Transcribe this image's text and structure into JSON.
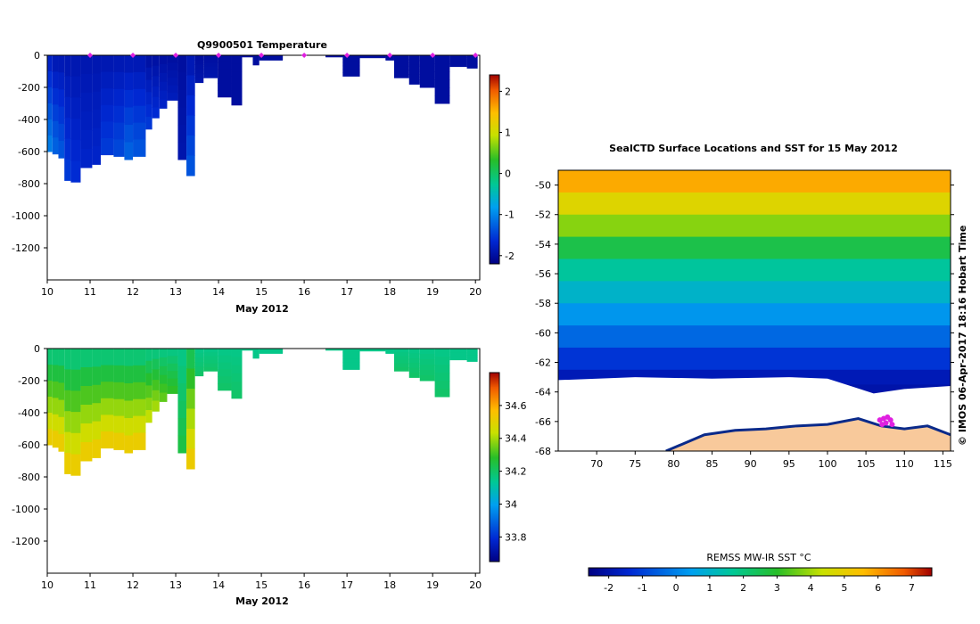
{
  "chart_data": [
    {
      "id": "temperature-section",
      "type": "heatmap",
      "title": "Q9900501  Temperature",
      "xlabel": "May 2012",
      "ylabel": "",
      "xlim": [
        10,
        20.1
      ],
      "ylim": [
        -1400,
        0
      ],
      "xticks": [
        "10",
        "11",
        "12",
        "13",
        "14",
        "15",
        "16",
        "17",
        "18",
        "19",
        "20"
      ],
      "yticks": [
        "0",
        "-200",
        "-400",
        "-600",
        "-800",
        "-1000",
        "-1200"
      ],
      "colorbar": {
        "min": -2.2,
        "max": 2.4,
        "ticks": [
          "2",
          "1",
          "0",
          "-1",
          "-2"
        ]
      },
      "profile_markers_x": [
        11,
        12,
        13,
        14,
        15,
        16,
        17,
        18,
        19,
        20
      ],
      "profiles": [
        {
          "x0": 10.0,
          "x1": 10.12,
          "depth": 600,
          "surface": -1.8,
          "bottom": -1.0
        },
        {
          "x0": 10.12,
          "x1": 10.26,
          "depth": 615,
          "surface": -1.9,
          "bottom": -1.2
        },
        {
          "x0": 10.26,
          "x1": 10.4,
          "depth": 640,
          "surface": -1.9,
          "bottom": -1.3
        },
        {
          "x0": 10.4,
          "x1": 10.55,
          "depth": 780,
          "surface": -1.9,
          "bottom": -1.5
        },
        {
          "x0": 10.55,
          "x1": 10.78,
          "depth": 790,
          "surface": -1.9,
          "bottom": -1.6
        },
        {
          "x0": 10.78,
          "x1": 11.05,
          "depth": 700,
          "surface": -1.9,
          "bottom": -1.7
        },
        {
          "x0": 11.05,
          "x1": 11.25,
          "depth": 680,
          "surface": -1.9,
          "bottom": -1.7
        },
        {
          "x0": 11.25,
          "x1": 11.55,
          "depth": 620,
          "surface": -1.9,
          "bottom": -1.5
        },
        {
          "x0": 11.55,
          "x1": 11.8,
          "depth": 630,
          "surface": -1.9,
          "bottom": -1.4
        },
        {
          "x0": 11.8,
          "x1": 12.0,
          "depth": 650,
          "surface": -1.9,
          "bottom": -1.2
        },
        {
          "x0": 12.0,
          "x1": 12.3,
          "depth": 630,
          "surface": -1.9,
          "bottom": -1.3
        },
        {
          "x0": 12.3,
          "x1": 12.45,
          "depth": 460,
          "surface": -2.0,
          "bottom": -1.5
        },
        {
          "x0": 12.45,
          "x1": 12.62,
          "depth": 390,
          "surface": -2.0,
          "bottom": -1.6
        },
        {
          "x0": 12.62,
          "x1": 12.8,
          "depth": 330,
          "surface": -2.0,
          "bottom": -1.7
        },
        {
          "x0": 12.8,
          "x1": 13.05,
          "depth": 280,
          "surface": -2.0,
          "bottom": -1.8
        },
        {
          "x0": 13.05,
          "x1": 13.25,
          "depth": 650,
          "surface": -2.0,
          "bottom": -1.9
        },
        {
          "x0": 13.25,
          "x1": 13.45,
          "depth": 750,
          "surface": -1.9,
          "bottom": -1.3
        },
        {
          "x0": 13.45,
          "x1": 13.65,
          "depth": 170,
          "surface": -2.0,
          "bottom": -1.9
        },
        {
          "x0": 13.65,
          "x1": 13.98,
          "depth": 140,
          "surface": -2.0,
          "bottom": -1.9
        },
        {
          "x0": 13.98,
          "x1": 14.3,
          "depth": 260,
          "surface": -2.0,
          "bottom": -2.0
        },
        {
          "x0": 14.3,
          "x1": 14.55,
          "depth": 310,
          "surface": -2.0,
          "bottom": -2.0
        },
        {
          "x0": 14.55,
          "x1": 14.8,
          "depth": 10,
          "surface": -2.0,
          "bottom": -2.0
        },
        {
          "x0": 14.8,
          "x1": 14.95,
          "depth": 60,
          "surface": -2.0,
          "bottom": -2.0
        },
        {
          "x0": 14.95,
          "x1": 15.5,
          "depth": 30,
          "surface": -2.0,
          "bottom": -2.0
        },
        {
          "x0": 16.5,
          "x1": 16.9,
          "depth": 10,
          "surface": -2.0,
          "bottom": -2.0
        },
        {
          "x0": 16.9,
          "x1": 17.3,
          "depth": 130,
          "surface": -2.0,
          "bottom": -2.0
        },
        {
          "x0": 17.3,
          "x1": 17.9,
          "depth": 15,
          "surface": -2.0,
          "bottom": -2.0
        },
        {
          "x0": 17.9,
          "x1": 18.1,
          "depth": 30,
          "surface": -2.0,
          "bottom": -2.0
        },
        {
          "x0": 18.1,
          "x1": 18.45,
          "depth": 140,
          "surface": -2.0,
          "bottom": -2.0
        },
        {
          "x0": 18.45,
          "x1": 18.7,
          "depth": 180,
          "surface": -2.0,
          "bottom": -2.0
        },
        {
          "x0": 18.7,
          "x1": 19.05,
          "depth": 200,
          "surface": -2.0,
          "bottom": -2.0
        },
        {
          "x0": 19.05,
          "x1": 19.4,
          "depth": 300,
          "surface": -2.0,
          "bottom": -2.0
        },
        {
          "x0": 19.4,
          "x1": 19.8,
          "depth": 70,
          "surface": -2.0,
          "bottom": -2.0
        },
        {
          "x0": 19.8,
          "x1": 20.05,
          "depth": 80,
          "surface": -2.0,
          "bottom": -2.0
        }
      ]
    },
    {
      "id": "salinity-section",
      "type": "heatmap",
      "title": "",
      "xlabel": "May 2012",
      "ylabel": "",
      "xlim": [
        10,
        20.1
      ],
      "ylim": [
        -1400,
        0
      ],
      "xticks": [
        "10",
        "11",
        "12",
        "13",
        "14",
        "15",
        "16",
        "17",
        "18",
        "19",
        "20"
      ],
      "yticks": [
        "0",
        "-200",
        "-400",
        "-600",
        "-800",
        "-1000",
        "-1200"
      ],
      "colorbar": {
        "min": 33.65,
        "max": 34.8,
        "ticks": [
          "34.6",
          "34.4",
          "34.2",
          "34",
          "33.8"
        ]
      },
      "profiles": [
        {
          "x0": 10.0,
          "x1": 10.12,
          "depth": 600,
          "surface": 34.15,
          "bottom": 34.55
        },
        {
          "x0": 10.12,
          "x1": 10.26,
          "depth": 615,
          "surface": 34.15,
          "bottom": 34.55
        },
        {
          "x0": 10.26,
          "x1": 10.4,
          "depth": 640,
          "surface": 34.15,
          "bottom": 34.55
        },
        {
          "x0": 10.4,
          "x1": 10.55,
          "depth": 780,
          "surface": 34.15,
          "bottom": 34.55
        },
        {
          "x0": 10.55,
          "x1": 10.78,
          "depth": 790,
          "surface": 34.15,
          "bottom": 34.55
        },
        {
          "x0": 10.78,
          "x1": 11.05,
          "depth": 700,
          "surface": 34.15,
          "bottom": 34.55
        },
        {
          "x0": 11.05,
          "x1": 11.25,
          "depth": 680,
          "surface": 34.15,
          "bottom": 34.55
        },
        {
          "x0": 11.25,
          "x1": 11.55,
          "depth": 620,
          "surface": 34.15,
          "bottom": 34.55
        },
        {
          "x0": 11.55,
          "x1": 11.8,
          "depth": 630,
          "surface": 34.15,
          "bottom": 34.55
        },
        {
          "x0": 11.8,
          "x1": 12.0,
          "depth": 650,
          "surface": 34.15,
          "bottom": 34.55
        },
        {
          "x0": 12.0,
          "x1": 12.3,
          "depth": 630,
          "surface": 34.15,
          "bottom": 34.55
        },
        {
          "x0": 12.3,
          "x1": 12.45,
          "depth": 460,
          "surface": 34.15,
          "bottom": 34.45
        },
        {
          "x0": 12.45,
          "x1": 12.62,
          "depth": 390,
          "surface": 34.15,
          "bottom": 34.42
        },
        {
          "x0": 12.62,
          "x1": 12.8,
          "depth": 330,
          "surface": 34.15,
          "bottom": 34.35
        },
        {
          "x0": 12.8,
          "x1": 13.05,
          "depth": 280,
          "surface": 34.15,
          "bottom": 34.3
        },
        {
          "x0": 13.05,
          "x1": 13.25,
          "depth": 650,
          "surface": 34.15,
          "bottom": 34.25
        },
        {
          "x0": 13.25,
          "x1": 13.45,
          "depth": 750,
          "surface": 34.2,
          "bottom": 34.55
        },
        {
          "x0": 13.45,
          "x1": 13.65,
          "depth": 170,
          "surface": 34.15,
          "bottom": 34.2
        },
        {
          "x0": 13.65,
          "x1": 13.98,
          "depth": 140,
          "surface": 34.15,
          "bottom": 34.2
        },
        {
          "x0": 13.98,
          "x1": 14.3,
          "depth": 260,
          "surface": 34.15,
          "bottom": 34.2
        },
        {
          "x0": 14.3,
          "x1": 14.55,
          "depth": 310,
          "surface": 34.15,
          "bottom": 34.2
        },
        {
          "x0": 14.55,
          "x1": 14.8,
          "depth": 10,
          "surface": 34.15,
          "bottom": 34.15
        },
        {
          "x0": 14.8,
          "x1": 14.95,
          "depth": 60,
          "surface": 34.15,
          "bottom": 34.15
        },
        {
          "x0": 14.95,
          "x1": 15.5,
          "depth": 30,
          "surface": 34.15,
          "bottom": 34.15
        },
        {
          "x0": 16.5,
          "x1": 16.9,
          "depth": 10,
          "surface": 34.15,
          "bottom": 34.15
        },
        {
          "x0": 16.9,
          "x1": 17.3,
          "depth": 130,
          "surface": 34.15,
          "bottom": 34.15
        },
        {
          "x0": 17.3,
          "x1": 17.9,
          "depth": 15,
          "surface": 34.15,
          "bottom": 34.15
        },
        {
          "x0": 17.9,
          "x1": 18.1,
          "depth": 30,
          "surface": 34.15,
          "bottom": 34.15
        },
        {
          "x0": 18.1,
          "x1": 18.45,
          "depth": 140,
          "surface": 34.15,
          "bottom": 34.2
        },
        {
          "x0": 18.45,
          "x1": 18.7,
          "depth": 180,
          "surface": 34.15,
          "bottom": 34.2
        },
        {
          "x0": 18.7,
          "x1": 19.05,
          "depth": 200,
          "surface": 34.15,
          "bottom": 34.2
        },
        {
          "x0": 19.05,
          "x1": 19.4,
          "depth": 300,
          "surface": 34.15,
          "bottom": 34.2
        },
        {
          "x0": 19.4,
          "x1": 19.8,
          "depth": 70,
          "surface": 34.15,
          "bottom": 34.15
        },
        {
          "x0": 19.8,
          "x1": 20.05,
          "depth": 80,
          "surface": 34.15,
          "bottom": 34.15
        }
      ]
    },
    {
      "id": "sst-map",
      "type": "heatmap",
      "title": "SealCTD Surface Locations and SST for 15 May 2012",
      "xlabel": "",
      "ylabel": "",
      "xlim": [
        65,
        116
      ],
      "ylim": [
        -68,
        -49
      ],
      "xticks": [
        "70",
        "75",
        "80",
        "85",
        "90",
        "95",
        "100",
        "105",
        "110",
        "115"
      ],
      "yticks": [
        "-50",
        "-52",
        "-54",
        "-56",
        "-58",
        "-60",
        "-62",
        "-64",
        "-66",
        "-68"
      ],
      "sst_bands": [
        {
          "lat": -49.0,
          "sst": 5.8
        },
        {
          "lat": -50.5,
          "sst": 4.8
        },
        {
          "lat": -52.0,
          "sst": 3.8
        },
        {
          "lat": -53.5,
          "sst": 2.6
        },
        {
          "lat": -55.0,
          "sst": 1.6
        },
        {
          "lat": -56.5,
          "sst": 1.0
        },
        {
          "lat": -58.0,
          "sst": 0.3
        },
        {
          "lat": -59.5,
          "sst": -0.4
        },
        {
          "lat": -61.0,
          "sst": -1.2
        },
        {
          "lat": -62.5,
          "sst": -1.8
        },
        {
          "lat": -63.5,
          "sst": -2.0
        }
      ],
      "ice_edge": [
        {
          "lon": 65,
          "lat": -63.2
        },
        {
          "lon": 75,
          "lat": -63.0
        },
        {
          "lon": 85,
          "lat": -63.1
        },
        {
          "lon": 95,
          "lat": -63.0
        },
        {
          "lon": 100,
          "lat": -63.1
        },
        {
          "lon": 103,
          "lat": -63.6
        },
        {
          "lon": 106,
          "lat": -64.1
        },
        {
          "lon": 110,
          "lat": -63.8
        },
        {
          "lon": 116,
          "lat": -63.6
        }
      ],
      "coastline": [
        {
          "lon": 79,
          "lat": -68
        },
        {
          "lon": 84,
          "lat": -66.9
        },
        {
          "lon": 88,
          "lat": -66.6
        },
        {
          "lon": 92,
          "lat": -66.5
        },
        {
          "lon": 96,
          "lat": -66.3
        },
        {
          "lon": 100,
          "lat": -66.2
        },
        {
          "lon": 104,
          "lat": -65.8
        },
        {
          "lon": 107,
          "lat": -66.3
        },
        {
          "lon": 110,
          "lat": -66.5
        },
        {
          "lon": 113,
          "lat": -66.3
        },
        {
          "lon": 116,
          "lat": -66.9
        }
      ],
      "seal_ctd_locations": [
        {
          "lon": 106.8,
          "lat": -65.9
        },
        {
          "lon": 107.3,
          "lat": -65.8
        },
        {
          "lon": 107.8,
          "lat": -65.7
        },
        {
          "lon": 108.2,
          "lat": -65.9
        },
        {
          "lon": 107.6,
          "lat": -66.1
        },
        {
          "lon": 108.4,
          "lat": -66.2
        },
        {
          "lon": 107.1,
          "lat": -66.2
        }
      ],
      "colorbar": {
        "label": "REMSS MW-IR SST °C",
        "min": -2.6,
        "max": 7.6,
        "ticks": [
          "-2",
          "-1",
          "0",
          "1",
          "2",
          "3",
          "4",
          "5",
          "6",
          "7"
        ]
      },
      "credit": "© IMOS 06-Apr-2017 18:16 Hobart Time"
    }
  ]
}
